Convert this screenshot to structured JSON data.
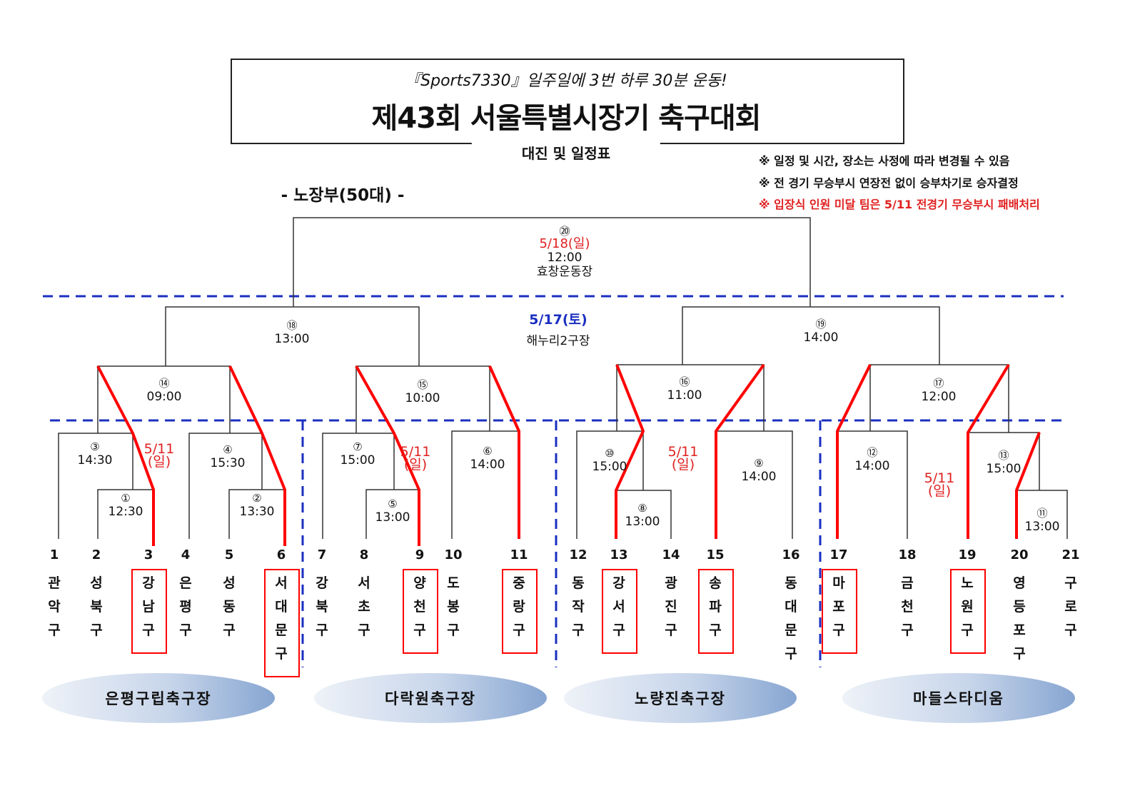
{
  "header": {
    "slogan": "『Sports7330』일주일에 3번 하루 30분 운동!",
    "title": "제43회 서울특별시장기 축구대회",
    "subtitle": "대진 및 일정표"
  },
  "notes": [
    "※ 일정 및 시간, 장소는 사정에 따라 변경될 수 있음",
    "※ 전 경기 무승부시 연장전 없이 승부차기로 승자결정",
    "※ 입장식 인원 미달 팀은 5/11 전경기 무승부시 패배처리"
  ],
  "colors": {
    "note_alert": "#e02020",
    "winner_line": "#ff0000",
    "divider": "#1a2fc0"
  },
  "division": "- 노장부(50대) -",
  "final": {
    "num": "⑳",
    "date": "5/18(일)",
    "time": "12:00",
    "venue": "효창운동장"
  },
  "semi_info": {
    "date": "5/17(토)",
    "venue": "해누리2구장"
  },
  "round1_date": "5/11\n(일)",
  "round1_date_line1": "5/11",
  "round1_date_line2": "(일)",
  "matches": [
    {
      "num": "①",
      "time": "12:30"
    },
    {
      "num": "②",
      "time": "13:30"
    },
    {
      "num": "③",
      "time": "14:30"
    },
    {
      "num": "④",
      "time": "15:30"
    },
    {
      "num": "⑤",
      "time": "13:00"
    },
    {
      "num": "⑥",
      "time": "14:00"
    },
    {
      "num": "⑦",
      "time": "15:00"
    },
    {
      "num": "⑧",
      "time": "13:00"
    },
    {
      "num": "⑨",
      "time": "14:00"
    },
    {
      "num": "⑩",
      "time": "15:00"
    },
    {
      "num": "⑪",
      "time": "13:00"
    },
    {
      "num": "⑫",
      "time": "14:00"
    },
    {
      "num": "⑬",
      "time": "15:00"
    },
    {
      "num": "⑭",
      "time": "09:00"
    },
    {
      "num": "⑮",
      "time": "10:00"
    },
    {
      "num": "⑯",
      "time": "11:00"
    },
    {
      "num": "⑰",
      "time": "12:00"
    },
    {
      "num": "⑱",
      "time": "13:00"
    },
    {
      "num": "⑲",
      "time": "14:00"
    }
  ],
  "teams": [
    {
      "no": "1",
      "name": "관악구",
      "highlighted": false
    },
    {
      "no": "2",
      "name": "성북구",
      "highlighted": false
    },
    {
      "no": "3",
      "name": "강남구",
      "highlighted": true
    },
    {
      "no": "4",
      "name": "은평구",
      "highlighted": false
    },
    {
      "no": "5",
      "name": "성동구",
      "highlighted": false
    },
    {
      "no": "6",
      "name": "서대문구",
      "highlighted": true
    },
    {
      "no": "7",
      "name": "강북구",
      "highlighted": false
    },
    {
      "no": "8",
      "name": "서초구",
      "highlighted": false
    },
    {
      "no": "9",
      "name": "양천구",
      "highlighted": true
    },
    {
      "no": "10",
      "name": "도봉구",
      "highlighted": false
    },
    {
      "no": "11",
      "name": "중랑구",
      "highlighted": true
    },
    {
      "no": "12",
      "name": "동작구",
      "highlighted": false
    },
    {
      "no": "13",
      "name": "강서구",
      "highlighted": true
    },
    {
      "no": "14",
      "name": "광진구",
      "highlighted": false
    },
    {
      "no": "15",
      "name": "송파구",
      "highlighted": true
    },
    {
      "no": "16",
      "name": "동대문구",
      "highlighted": false
    },
    {
      "no": "17",
      "name": "마포구",
      "highlighted": true
    },
    {
      "no": "18",
      "name": "금천구",
      "highlighted": false
    },
    {
      "no": "19",
      "name": "노원구",
      "highlighted": true
    },
    {
      "no": "20",
      "name": "영등포구",
      "highlighted": false
    },
    {
      "no": "21",
      "name": "구로구",
      "highlighted": false
    }
  ],
  "venues": [
    "은평구립축구장",
    "다락원축구장",
    "노량진축구장",
    "마들스타디움"
  ]
}
